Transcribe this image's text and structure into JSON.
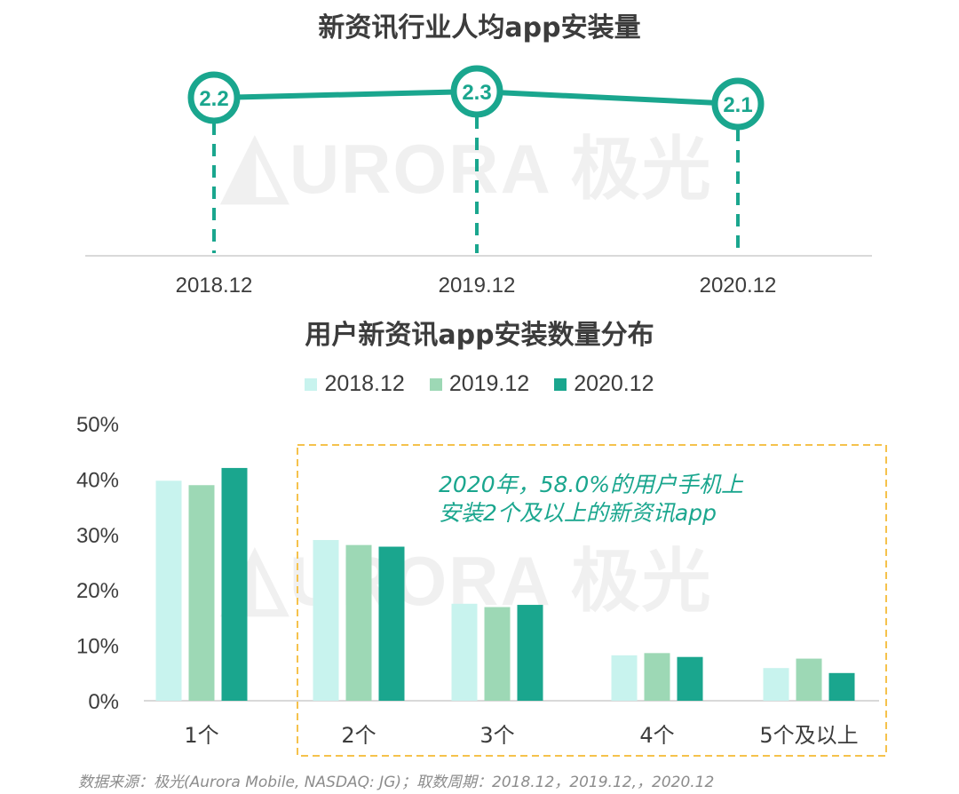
{
  "line_chart": {
    "title": "新资讯行业人均app安装量",
    "chart_data": {
      "type": "line",
      "x": [
        "2018.12",
        "2019.12",
        "2020.12"
      ],
      "values": [
        2.2,
        2.3,
        2.1
      ],
      "labels": [
        "2.2",
        "2.3",
        "2.1"
      ]
    }
  },
  "bar_chart": {
    "title": "用户新资讯app安装数量分布",
    "annotation_line1": "2020年，58.0%的用户手机上",
    "annotation_line2": "安装2个及以上的新资讯app",
    "chart_data": {
      "type": "bar",
      "categories": [
        "1个",
        "2个",
        "3个",
        "4个",
        "5个及以上"
      ],
      "series": [
        {
          "name": "2018.12",
          "values": [
            39.7,
            29.0,
            17.5,
            8.2,
            5.9
          ]
        },
        {
          "name": "2019.12",
          "values": [
            38.9,
            28.1,
            16.9,
            8.6,
            7.6
          ]
        },
        {
          "name": "2020.12",
          "values": [
            42.0,
            27.8,
            17.3,
            7.9,
            5.0
          ]
        }
      ],
      "yticks": [
        "0%",
        "10%",
        "20%",
        "30%",
        "40%",
        "50%"
      ],
      "ylim": [
        0,
        50
      ]
    }
  },
  "colors": {
    "line": "#1aa68e",
    "s2018": "#c8f3ee",
    "s2019": "#9dd8b5",
    "s2020": "#1aa68e",
    "highlight_border": "#f5c24c"
  },
  "watermark": "URORA 极光",
  "footer": "数据来源：极光(Aurora Mobile, NASDAQ: JG)；取数周期：2018.12，2019.12,，2020.12"
}
